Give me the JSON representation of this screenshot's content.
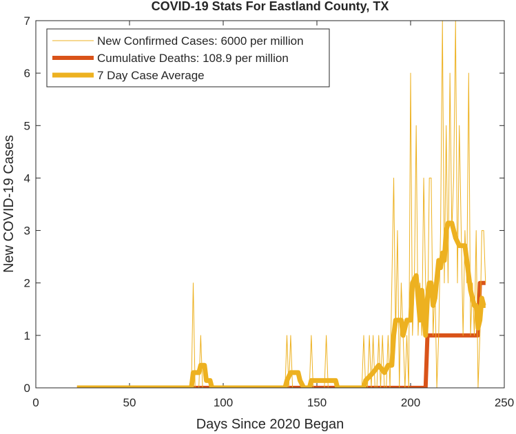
{
  "chart_data": {
    "type": "line",
    "title": "COVID-19 Stats For Eastland County, TX",
    "xlabel": "Days Since 2020 Began",
    "ylabel": "New COVID-19 Cases",
    "xlim": [
      0,
      250
    ],
    "ylim": [
      0,
      7
    ],
    "xticks": [
      0,
      50,
      100,
      150,
      200,
      250
    ],
    "yticks": [
      0,
      1,
      2,
      3,
      4,
      5,
      6,
      7
    ],
    "legend": "upper left",
    "series": [
      {
        "name": "New Confirmed Cases: 6000 per million",
        "color": "#EDB120",
        "width": 1,
        "x": [
          22,
          83,
          84,
          85,
          87,
          88,
          89,
          133,
          134,
          135,
          136,
          137,
          138,
          146,
          147,
          148,
          154,
          155,
          156,
          174,
          175,
          176,
          177,
          178,
          179,
          180,
          181,
          182,
          183,
          184,
          185,
          186,
          187,
          188,
          189,
          190,
          191,
          192,
          193,
          194,
          195,
          196,
          197,
          198,
          199,
          200,
          201,
          202,
          203,
          204,
          205,
          206,
          207,
          208,
          209,
          210,
          211,
          212,
          213,
          214,
          215,
          216,
          217,
          218,
          219,
          220,
          221,
          222,
          223,
          224,
          225,
          226,
          227,
          228,
          229,
          230,
          231,
          232,
          233,
          234,
          235,
          236,
          237,
          238,
          239,
          240
        ],
        "values": [
          0,
          0,
          2,
          0,
          0,
          1,
          0,
          0,
          1,
          0,
          1,
          0,
          0,
          0,
          1,
          0,
          0,
          1,
          0,
          0,
          1,
          0,
          0,
          1,
          0,
          1,
          0,
          0,
          1,
          0,
          1,
          0,
          0,
          1,
          0,
          2,
          4,
          1,
          3,
          0,
          2,
          1,
          0,
          1,
          0,
          6,
          1,
          2,
          5,
          1,
          2,
          1,
          4,
          2,
          1,
          4,
          4,
          1,
          2,
          0,
          1,
          3,
          7,
          2,
          5,
          2,
          6,
          3,
          4,
          7,
          2,
          5,
          3,
          1,
          3,
          2,
          6,
          1,
          2,
          1,
          3,
          0,
          1,
          3,
          3,
          2
        ]
      },
      {
        "name": "Cumulative Deaths: 108.9 per million",
        "color": "#D95319",
        "width": 6,
        "x": [
          22,
          208,
          209,
          236,
          237,
          240
        ],
        "values": [
          0,
          0,
          1,
          1,
          2,
          2
        ]
      },
      {
        "name": "7 Day Case Average",
        "color": "#EDB120",
        "width": 7,
        "x": [
          22,
          83,
          84,
          87,
          88,
          90,
          91,
          93,
          94,
          133,
          134,
          136,
          140,
          141,
          143,
          146,
          147,
          160,
          161,
          175,
          176,
          180,
          183,
          186,
          188,
          190,
          191,
          192,
          195,
          196,
          198,
          200,
          201,
          203,
          204,
          205,
          206,
          207,
          208,
          209,
          210,
          211,
          212,
          213,
          215,
          216,
          217,
          218,
          219,
          220,
          222,
          224,
          226,
          228,
          229,
          230,
          231,
          232,
          233,
          234,
          235,
          236,
          237,
          238,
          239,
          240
        ],
        "values": [
          0,
          0,
          0.29,
          0.29,
          0.43,
          0.43,
          0.14,
          0.14,
          0,
          0,
          0.14,
          0.29,
          0.29,
          0.14,
          0,
          0,
          0.14,
          0.14,
          0,
          0,
          0.14,
          0.29,
          0.43,
          0.29,
          0.43,
          0.43,
          1,
          1.29,
          1.29,
          1,
          1.29,
          1.29,
          2,
          2.14,
          1.71,
          1.29,
          1.86,
          1.43,
          1,
          1.71,
          2,
          2,
          1.57,
          1.71,
          2.43,
          2.29,
          2.57,
          2.43,
          3,
          3.14,
          3.14,
          2.86,
          2.71,
          2.71,
          2.71,
          2.43,
          2.14,
          1.86,
          1.71,
          1.57,
          1.57,
          1.14,
          1.29,
          1.71,
          1.57,
          1.57
        ]
      }
    ]
  }
}
